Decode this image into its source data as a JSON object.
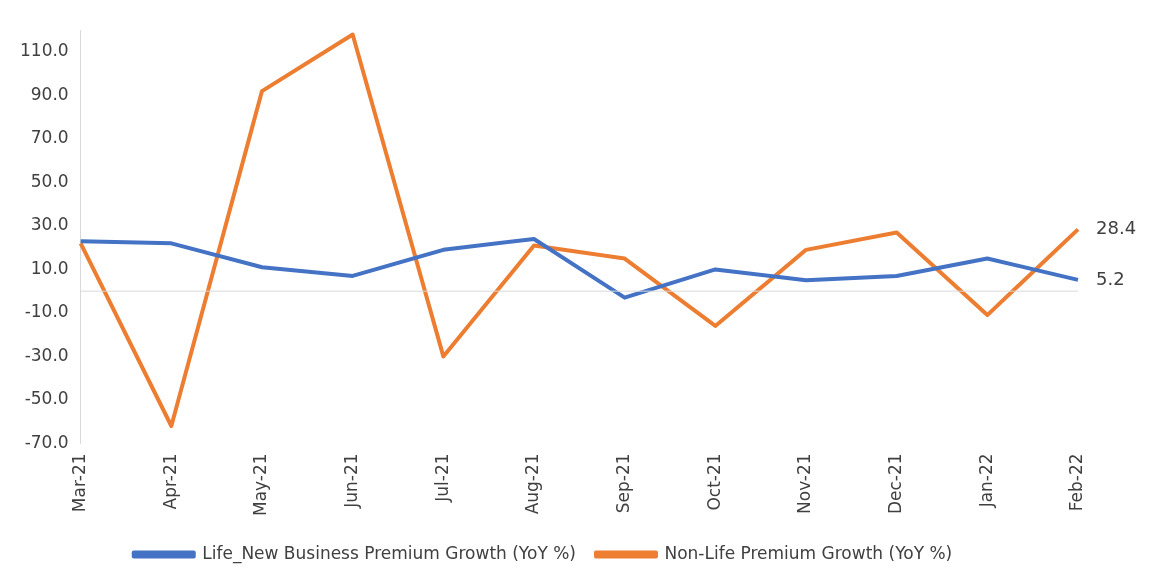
{
  "chart_data": {
    "type": "line",
    "categories": [
      "Mar-21",
      "Apr-21",
      "May-21",
      "Jun-21",
      "Jul-21",
      "Aug-21",
      "Sep-21",
      "Oct-21",
      "Nov-21",
      "Dec-21",
      "Jan-22",
      "Feb-22"
    ],
    "series": [
      {
        "name": "Life_New Business Premium Growth (YoY %)",
        "color": "#4472c4",
        "values": [
          23,
          22,
          11,
          7,
          19,
          24,
          -3,
          10,
          5,
          7,
          15,
          5.2
        ],
        "value_labels": [
          null,
          null,
          null,
          null,
          null,
          null,
          null,
          null,
          null,
          null,
          null,
          "5.2"
        ]
      },
      {
        "name": "Non-Life Premium Growth (YoY %)",
        "color": "#ed7d31",
        "values": [
          22,
          -62,
          92,
          118,
          -30,
          21,
          15,
          -16,
          19,
          27,
          -11,
          28.4
        ],
        "value_labels": [
          null,
          null,
          null,
          null,
          null,
          null,
          null,
          null,
          null,
          null,
          null,
          "28.4"
        ]
      }
    ],
    "ylim": [
      -70,
      120
    ],
    "yticks": [
      {
        "value": -70,
        "label": "-70.0"
      },
      {
        "value": -50,
        "label": "-50.0"
      },
      {
        "value": -30,
        "label": "-30.0"
      },
      {
        "value": -10,
        "label": "-10.0"
      },
      {
        "value": 10,
        "label": "10.0"
      },
      {
        "value": 30,
        "label": "30.0"
      },
      {
        "value": 50,
        "label": "50.0"
      },
      {
        "value": 70,
        "label": "70.0"
      },
      {
        "value": 90,
        "label": "90.0"
      },
      {
        "value": 110,
        "label": "110.0"
      }
    ],
    "ref_lines": [
      {
        "axis": "y",
        "value": 0,
        "color": "#d9d9d9"
      }
    ],
    "grid": false,
    "legend": "bottom",
    "marker": "none",
    "line_style": "solid"
  }
}
